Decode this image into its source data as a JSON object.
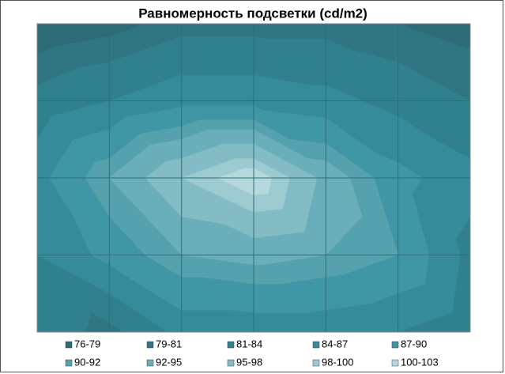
{
  "chart_data": {
    "type": "contour",
    "title": "Равномерность подсветки (cd/m2)",
    "z": [
      [
        77,
        78,
        80,
        80,
        80,
        79,
        78
      ],
      [
        82,
        84,
        86,
        86,
        85,
        83,
        81
      ],
      [
        86,
        92,
        98,
        102,
        94,
        88,
        85
      ],
      [
        84,
        88,
        92,
        93,
        92,
        90,
        83
      ],
      [
        83,
        80,
        85,
        85,
        85,
        84,
        82
      ]
    ],
    "bands": [
      {
        "name": "76-79",
        "from": 76,
        "to": 79,
        "color": "#2d6b76"
      },
      {
        "name": "79-81",
        "from": 79,
        "to": 81,
        "color": "#2f7582"
      },
      {
        "name": "81-84",
        "from": 81,
        "to": 84,
        "color": "#31808e"
      },
      {
        "name": "84-87",
        "from": 84,
        "to": 87,
        "color": "#358b9a"
      },
      {
        "name": "87-90",
        "from": 87,
        "to": 90,
        "color": "#3f96a4"
      },
      {
        "name": "90-92",
        "from": 90,
        "to": 92,
        "color": "#55a2ae"
      },
      {
        "name": "92-95",
        "from": 92,
        "to": 95,
        "color": "#6aaeb9"
      },
      {
        "name": "95-98",
        "from": 95,
        "to": 98,
        "color": "#83bcc5"
      },
      {
        "name": "98-100",
        "from": 98,
        "to": 100,
        "color": "#9ccad1"
      },
      {
        "name": "100-103",
        "from": 100,
        "to": 103,
        "color": "#b5d8dd"
      }
    ],
    "grid": true
  }
}
